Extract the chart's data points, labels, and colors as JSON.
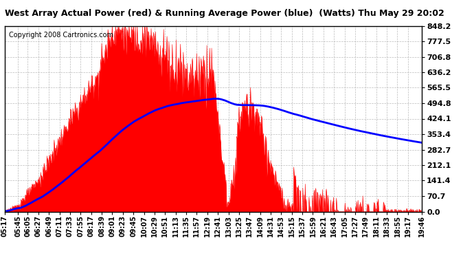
{
  "title": "West Array Actual Power (red) & Running Average Power (blue)  (Watts) Thu May 29 20:02",
  "copyright": "Copyright 2008 Cartronics.com",
  "background_color": "#ffffff",
  "yticks": [
    0.0,
    70.7,
    141.4,
    212.1,
    282.7,
    353.4,
    424.1,
    494.8,
    565.5,
    636.2,
    706.8,
    777.5,
    848.2
  ],
  "ymax": 848.2,
  "ymin": 0.0,
  "xtick_labels": [
    "05:17",
    "05:45",
    "06:05",
    "06:27",
    "06:49",
    "07:11",
    "07:33",
    "07:55",
    "08:17",
    "08:39",
    "09:01",
    "09:23",
    "09:45",
    "10:07",
    "10:29",
    "10:51",
    "11:13",
    "11:35",
    "11:57",
    "12:19",
    "12:41",
    "13:03",
    "13:25",
    "13:47",
    "14:09",
    "14:31",
    "14:53",
    "15:15",
    "15:37",
    "15:59",
    "16:21",
    "16:43",
    "17:05",
    "17:27",
    "17:49",
    "18:11",
    "18:33",
    "18:55",
    "19:17",
    "19:46"
  ],
  "red_color": "#ff0000",
  "blue_color": "#0000ff",
  "grid_color": "#aaaaaa",
  "title_fontsize": 9,
  "copyright_fontsize": 7,
  "ytick_fontsize": 8,
  "xtick_fontsize": 7
}
